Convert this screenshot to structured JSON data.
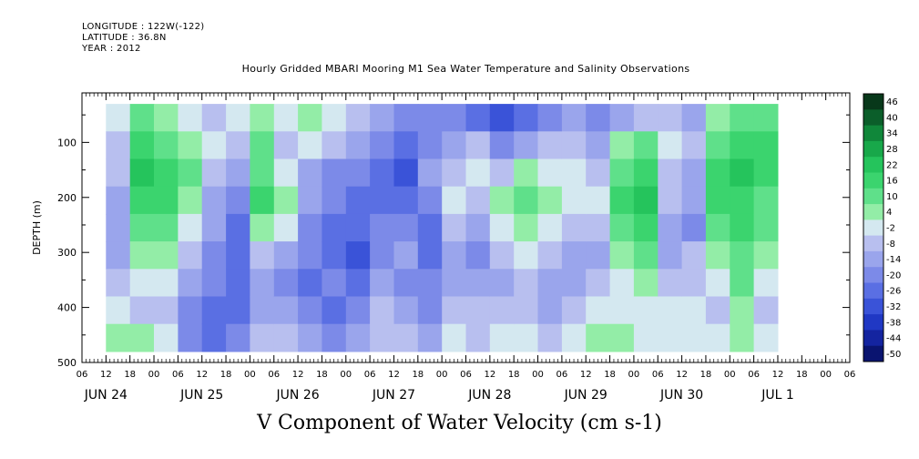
{
  "header": {
    "longitude": "LONGITUDE : 122W(-122)",
    "latitude": "LATITUDE : 36.8N",
    "year": "YEAR : 2012"
  },
  "chart_data": {
    "type": "heatmap",
    "title": "Hourly Gridded MBARI Mooring M1 Sea Water Temperature and Salinity Observations",
    "main_title": "V Component of Water Velocity (cm s-1)",
    "ylabel": "DEPTH (m)",
    "y_ticks": [
      "100",
      "200",
      "300",
      "400",
      "500"
    ],
    "y_reversed": true,
    "ylim": [
      500,
      10
    ],
    "x_hour_labels": [
      "06",
      "12",
      "18",
      "00",
      "06",
      "12",
      "18",
      "00",
      "06",
      "12",
      "18",
      "00",
      "06",
      "12",
      "18",
      "00",
      "06",
      "12",
      "18",
      "00",
      "06",
      "12",
      "18",
      "00",
      "06",
      "12",
      "18",
      "00",
      "06",
      "12",
      "18",
      "00",
      "06"
    ],
    "x_day_labels": [
      "JUN 24",
      "JUN 25",
      "JUN 26",
      "JUN 27",
      "JUN 28",
      "JUN 29",
      "JUN 30",
      "JUL  1"
    ],
    "colorbar": {
      "labels": [
        "46",
        "40",
        "34",
        "28",
        "22",
        "16",
        "10",
        "4",
        "-2",
        "-8",
        "-14",
        "-20",
        "-26",
        "-32",
        "-38",
        "-44",
        "-50"
      ],
      "colors": [
        "#08381a",
        "#0b5e2a",
        "#10873a",
        "#18a84a",
        "#25c45c",
        "#3bd46e",
        "#5fe08a",
        "#93eda7",
        "#d4e8f0",
        "#b8bfef",
        "#9aa5ec",
        "#7c8ae8",
        "#5a6fe3",
        "#3a53d8",
        "#2038c4",
        "#1424a0",
        "#0a1470"
      ]
    },
    "columns": [
      {
        "day": "JUN 24",
        "hour": "12",
        "v": [
          -2,
          -8,
          -8,
          -14,
          -14,
          -14,
          -8,
          -2,
          4
        ]
      },
      {
        "day": "JUN 24",
        "hour": "18",
        "v": [
          10,
          16,
          22,
          16,
          10,
          4,
          -2,
          -8,
          4
        ]
      },
      {
        "day": "JUN 25",
        "hour": "00",
        "v": [
          4,
          10,
          16,
          16,
          10,
          4,
          -2,
          -8,
          -2
        ]
      },
      {
        "day": "JUN 25",
        "hour": "06",
        "v": [
          -2,
          4,
          10,
          4,
          -2,
          -8,
          -14,
          -20,
          -20
        ]
      },
      {
        "day": "JUN 25",
        "hour": "12",
        "v": [
          -8,
          -2,
          -8,
          -14,
          -14,
          -20,
          -20,
          -26,
          -26
        ]
      },
      {
        "day": "JUN 25",
        "hour": "18",
        "v": [
          -2,
          -8,
          -14,
          -20,
          -26,
          -26,
          -26,
          -26,
          -20
        ]
      },
      {
        "day": "JUN 26",
        "hour": "00",
        "v": [
          4,
          10,
          10,
          16,
          4,
          -8,
          -14,
          -14,
          -8
        ]
      },
      {
        "day": "JUN 26",
        "hour": "06",
        "v": [
          -2,
          -8,
          -2,
          4,
          -2,
          -14,
          -20,
          -14,
          -8
        ]
      },
      {
        "day": "JUN 26",
        "hour": "12",
        "v": [
          4,
          -2,
          -14,
          -14,
          -20,
          -20,
          -26,
          -20,
          -14
        ]
      },
      {
        "day": "JUN 26",
        "hour": "18",
        "v": [
          -2,
          -8,
          -20,
          -20,
          -26,
          -26,
          -20,
          -26,
          -20
        ]
      },
      {
        "day": "JUN 27",
        "hour": "00",
        "v": [
          -8,
          -14,
          -20,
          -26,
          -26,
          -32,
          -26,
          -20,
          -14
        ]
      },
      {
        "day": "JUN 27",
        "hour": "06",
        "v": [
          -14,
          -20,
          -26,
          -26,
          -20,
          -20,
          -14,
          -8,
          -8
        ]
      },
      {
        "day": "JUN 27",
        "hour": "12",
        "v": [
          -20,
          -26,
          -32,
          -26,
          -20,
          -14,
          -20,
          -14,
          -8
        ]
      },
      {
        "day": "JUN 27",
        "hour": "18",
        "v": [
          -20,
          -20,
          -14,
          -20,
          -26,
          -26,
          -20,
          -20,
          -14
        ]
      },
      {
        "day": "JUN 28",
        "hour": "00",
        "v": [
          -20,
          -14,
          -8,
          -2,
          -8,
          -14,
          -14,
          -8,
          -2
        ]
      },
      {
        "day": "JUN 28",
        "hour": "06",
        "v": [
          -26,
          -8,
          -2,
          -8,
          -14,
          -20,
          -14,
          -8,
          -8
        ]
      },
      {
        "day": "JUN 28",
        "hour": "12",
        "v": [
          -32,
          -20,
          -8,
          4,
          -2,
          -8,
          -14,
          -8,
          -2
        ]
      },
      {
        "day": "JUN 28",
        "hour": "18",
        "v": [
          -26,
          -14,
          4,
          10,
          4,
          -2,
          -8,
          -8,
          -2
        ]
      },
      {
        "day": "JUN 29",
        "hour": "00",
        "v": [
          -20,
          -8,
          -2,
          4,
          -2,
          -8,
          -14,
          -14,
          -8
        ]
      },
      {
        "day": "JUN 29",
        "hour": "06",
        "v": [
          -14,
          -8,
          -2,
          -2,
          -8,
          -14,
          -14,
          -8,
          -2
        ]
      },
      {
        "day": "JUN 29",
        "hour": "12",
        "v": [
          -20,
          -14,
          -8,
          -2,
          -8,
          -14,
          -8,
          -2,
          4
        ]
      },
      {
        "day": "JUN 29",
        "hour": "18",
        "v": [
          -14,
          4,
          10,
          16,
          10,
          4,
          -2,
          -2,
          4
        ]
      },
      {
        "day": "JUN 30",
        "hour": "00",
        "v": [
          -8,
          10,
          16,
          22,
          16,
          10,
          4,
          -2,
          -2
        ]
      },
      {
        "day": "JUN 30",
        "hour": "06",
        "v": [
          -8,
          -2,
          -8,
          -8,
          -14,
          -14,
          -8,
          -2,
          -2
        ]
      },
      {
        "day": "JUN 30",
        "hour": "12",
        "v": [
          -14,
          -8,
          -14,
          -14,
          -20,
          -8,
          -8,
          -2,
          -2
        ]
      },
      {
        "day": "JUN 30",
        "hour": "18",
        "v": [
          4,
          10,
          16,
          16,
          10,
          4,
          -2,
          -8,
          -2
        ]
      },
      {
        "day": "JUL  1",
        "hour": "00",
        "v": [
          10,
          16,
          22,
          16,
          16,
          10,
          10,
          4,
          4
        ]
      },
      {
        "day": "JUL  1",
        "hour": "06",
        "v": [
          10,
          16,
          16,
          10,
          10,
          4,
          -2,
          -8,
          -2
        ]
      }
    ],
    "depth_bins": [
      30,
      80,
      130,
      180,
      230,
      280,
      330,
      380,
      430
    ]
  }
}
